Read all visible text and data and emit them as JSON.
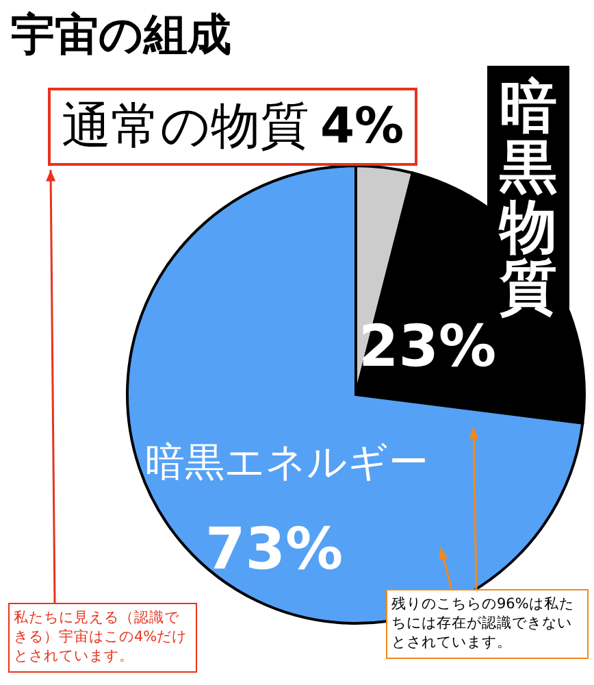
{
  "chart_data": {
    "type": "pie",
    "title": "宇宙の組成",
    "categories": [
      "通常の物質",
      "暗黒物質",
      "暗黒エネルギー"
    ],
    "values": [
      4,
      23,
      73
    ],
    "value_labels": [
      "4%",
      "23%",
      "73%"
    ],
    "colors": [
      "#cccccc",
      "#000000",
      "#55a1f5"
    ],
    "annotations": [
      "私たちに見える（認識できる）宇宙はこの4%だけとされています。",
      "残りのこちらの96%は私たちには存在が認識できないとされています。"
    ]
  }
}
